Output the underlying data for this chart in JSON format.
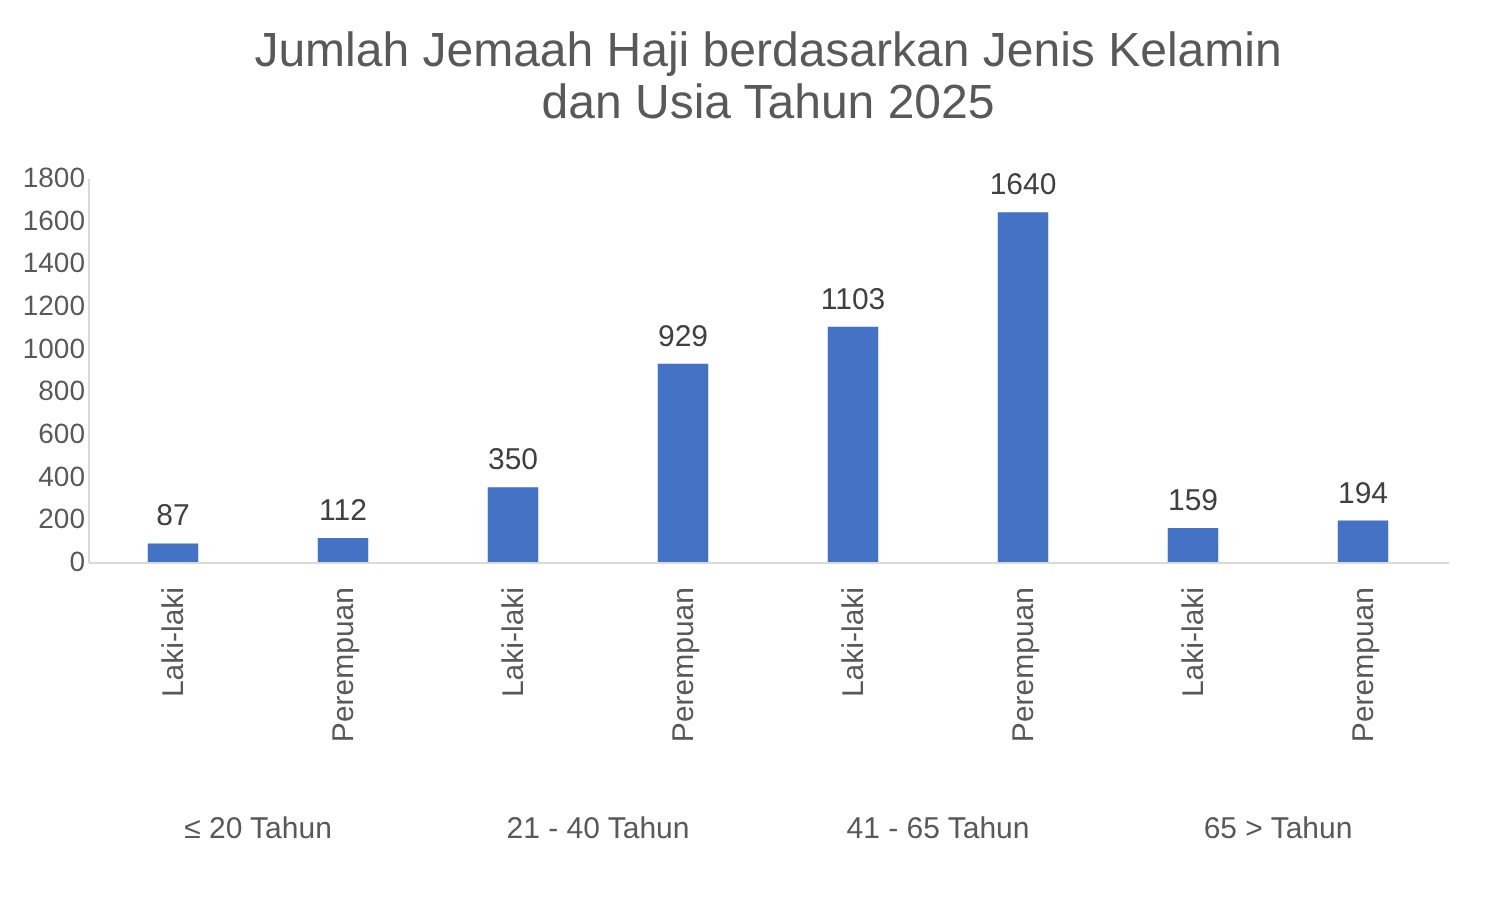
{
  "chart_data": {
    "type": "bar",
    "title": "Jumlah Jemaah Haji berdasarkan Jenis Kelamin\ndan Usia Tahun 2025",
    "categories": [
      "Laki-laki",
      "Perempuan",
      "Laki-laki",
      "Perempuan",
      "Laki-laki",
      "Perempuan",
      "Laki-laki",
      "Perempuan"
    ],
    "values": [
      87,
      112,
      350,
      929,
      1103,
      1640,
      159,
      194
    ],
    "color": "#4472c4",
    "ylim": [
      0,
      1800
    ],
    "yticks": [
      0,
      200,
      400,
      600,
      800,
      1000,
      1200,
      1400,
      1600,
      1800
    ],
    "data_labels": true,
    "annotations": [
      "≤ 20 Tahun",
      "21 - 40 Tahun",
      "41 - 65 Tahun",
      "65 > Tahun"
    ]
  }
}
